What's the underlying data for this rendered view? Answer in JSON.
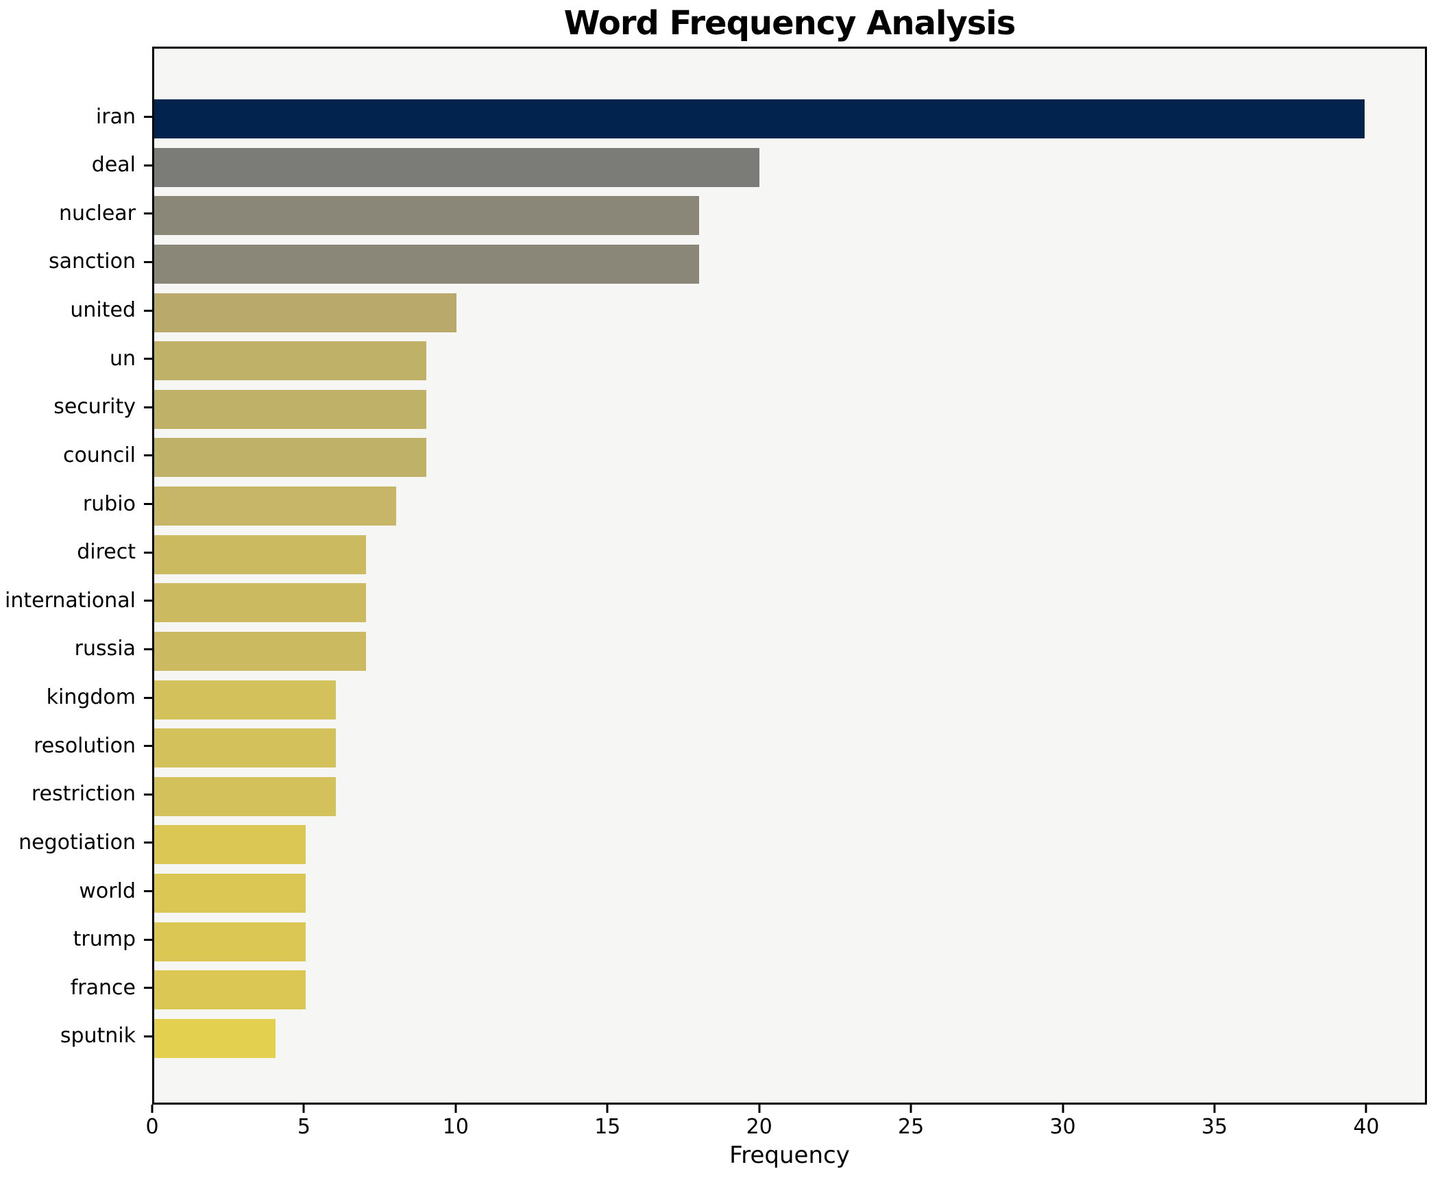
{
  "chart_data": {
    "type": "bar",
    "orientation": "horizontal",
    "title": "Word Frequency Analysis",
    "xlabel": "Frequency",
    "ylabel": "",
    "categories": [
      "iran",
      "deal",
      "nuclear",
      "sanction",
      "united",
      "un",
      "security",
      "council",
      "rubio",
      "direct",
      "international",
      "russia",
      "kingdom",
      "resolution",
      "restriction",
      "negotiation",
      "world",
      "trump",
      "france",
      "sputnik"
    ],
    "values": [
      40,
      20,
      18,
      18,
      10,
      9,
      9,
      9,
      8,
      7,
      7,
      7,
      6,
      6,
      6,
      5,
      5,
      5,
      5,
      4
    ],
    "bar_colors": [
      "#02234e",
      "#7b7b78",
      "#8a8678",
      "#8a8678",
      "#b9aa6b",
      "#c0b169",
      "#c0b169",
      "#c0b169",
      "#c7b667",
      "#ccba61",
      "#ccba61",
      "#ccba61",
      "#d3c25b",
      "#d3c25b",
      "#d3c25b",
      "#dbc754",
      "#dbc754",
      "#dbc754",
      "#dbc754",
      "#e4d04f"
    ],
    "xlim": [
      0,
      42
    ],
    "xticks": [
      0,
      5,
      10,
      15,
      20,
      25,
      30,
      35,
      40
    ],
    "grid": false,
    "legend": "none",
    "colors": {
      "figure_background": "#ffffff",
      "plot_background": "#f6f6f5",
      "spine": "#000000",
      "text": "#000000"
    }
  }
}
